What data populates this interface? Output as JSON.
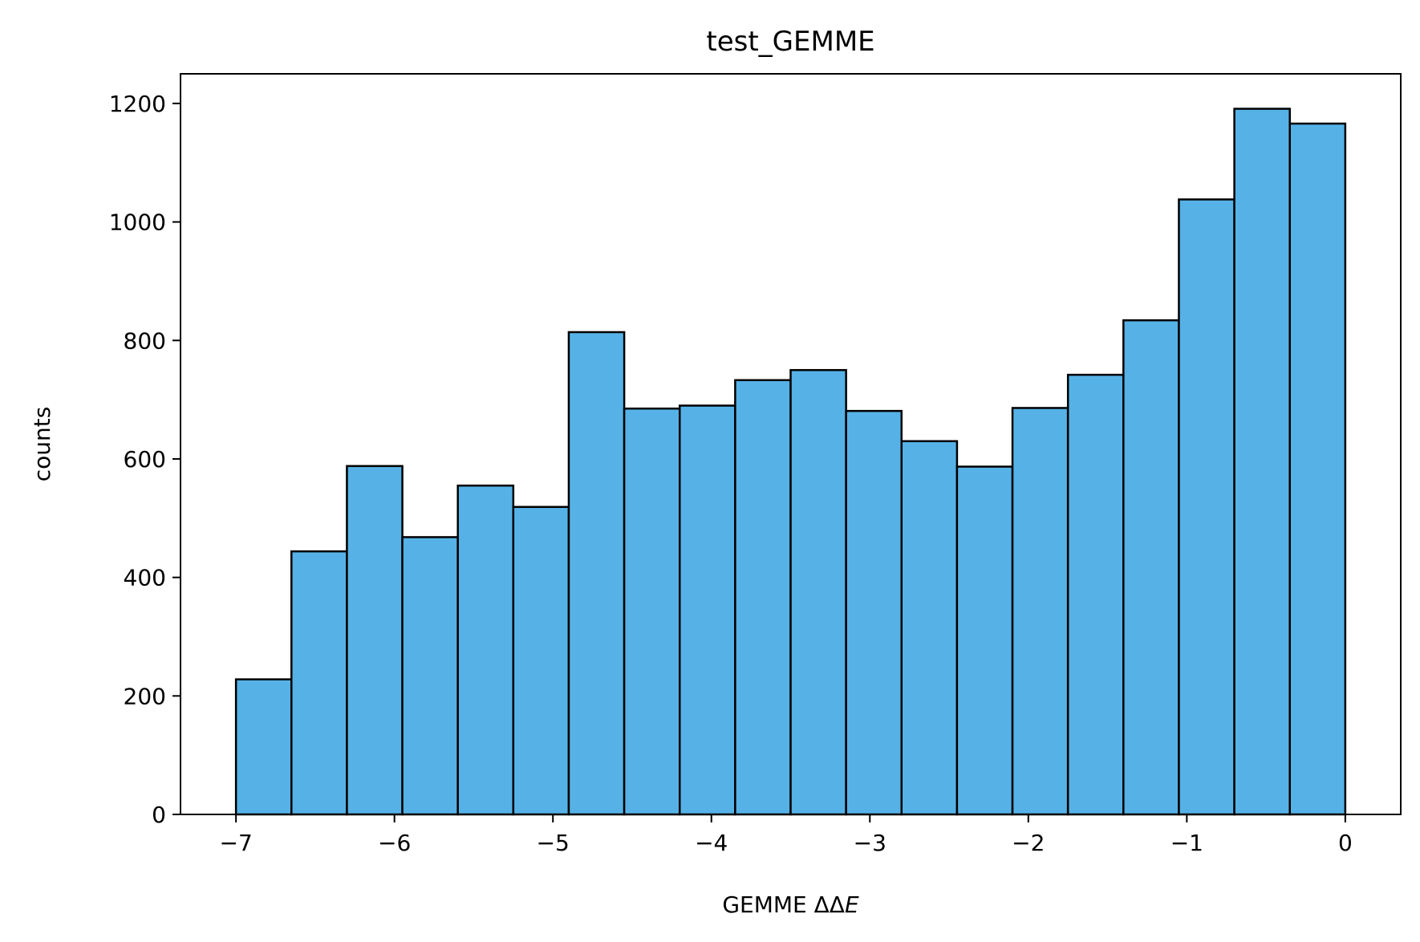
{
  "chart_data": {
    "type": "bar",
    "title": "test_GEMME",
    "xlabel_prefix": "GEMME ΔΔ",
    "xlabel_var": "E",
    "ylabel": "counts",
    "xlim": [
      -7.35,
      0.35
    ],
    "ylim": [
      0,
      1250
    ],
    "xticks": [
      -7,
      -6,
      -5,
      -4,
      -3,
      -2,
      -1,
      0
    ],
    "xtick_labels": [
      "−7",
      "−6",
      "−5",
      "−4",
      "−3",
      "−2",
      "−1",
      "0"
    ],
    "yticks": [
      0,
      200,
      400,
      600,
      800,
      1000,
      1200
    ],
    "ytick_labels": [
      "0",
      "200",
      "400",
      "600",
      "800",
      "1000",
      "1200"
    ],
    "grid": false,
    "bar_color": "#56b2e6",
    "edge_color": "#000000",
    "bin_edges": [
      -7.0,
      -6.65,
      -6.3,
      -5.95,
      -5.6,
      -5.25,
      -4.9,
      -4.55,
      -4.2,
      -3.85,
      -3.5,
      -3.15,
      -2.8,
      -2.45,
      -2.1,
      -1.75,
      -1.4,
      -1.05,
      -0.7,
      -0.35,
      0.0
    ],
    "values": [
      228,
      444,
      588,
      468,
      555,
      519,
      814,
      685,
      690,
      733,
      750,
      681,
      630,
      587,
      686,
      742,
      834,
      1038,
      1191,
      1166
    ]
  }
}
